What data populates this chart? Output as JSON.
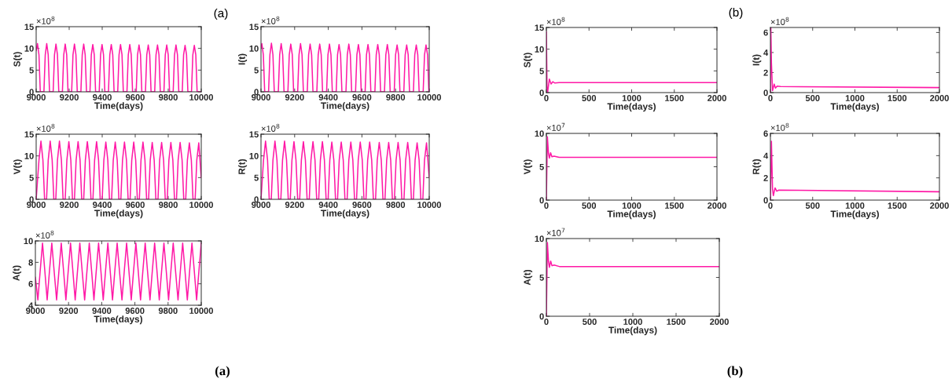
{
  "chart_data": [
    {
      "type": "line",
      "xlabel": "Time(days)",
      "ylabel": "S(t)",
      "annotations": [
        "×10$^{8}$",
        "(a)"
      ],
      "xlim": [
        9000,
        10000
      ],
      "xticks": [
        9000,
        9200,
        9400,
        9600,
        9800,
        10000
      ],
      "ylim": [
        0,
        15
      ],
      "yticks": [
        0,
        5,
        10,
        15
      ],
      "series": [
        {
          "color": "#ff19a6",
          "x": [
            9000,
            9008,
            9017,
            9025,
            9047,
            9055,
            9064,
            9073,
            9081,
            9103,
            9111,
            9120,
            9129,
            9137,
            9159,
            9167,
            9176,
            9185,
            9193,
            9215,
            9223,
            9232,
            9241,
            9249,
            9271,
            9279,
            9288,
            9297,
            9305,
            9326,
            9334,
            9343,
            9352,
            9360,
            9382,
            9390,
            9399,
            9408,
            9416,
            9438,
            9446,
            9455,
            9464,
            9472,
            9494,
            9502,
            9511,
            9520,
            9528,
            9550,
            9558,
            9567,
            9576,
            9584,
            9606,
            9614,
            9623,
            9632,
            9640,
            9662,
            9670,
            9679,
            9688,
            9696,
            9718,
            9726,
            9735,
            9744,
            9752,
            9774,
            9782,
            9791,
            9800,
            9808,
            9830,
            9838,
            9847,
            9856,
            9864,
            9885,
            9893,
            9902,
            9911,
            9919,
            9941,
            9949,
            9958,
            9967,
            9975,
            10000
          ],
          "values": [
            9.5,
            11.1,
            8.5,
            0,
            0,
            8.5,
            11.1,
            8.5,
            0,
            0,
            8.5,
            11.0,
            8.5,
            0,
            0,
            8.5,
            11.0,
            8.5,
            0,
            0,
            8.5,
            11.0,
            8.5,
            0,
            0,
            8.5,
            11.0,
            8.5,
            0,
            0,
            8.5,
            10.9,
            8.5,
            0,
            0,
            8.5,
            10.9,
            8.5,
            0,
            0,
            8.5,
            10.9,
            8.5,
            0,
            0,
            8.5,
            10.9,
            8.5,
            0,
            0,
            8.5,
            10.9,
            8.5,
            0,
            0,
            8.5,
            10.8,
            8.5,
            0,
            0,
            8.5,
            10.8,
            8.5,
            0,
            0,
            8.5,
            10.8,
            8.5,
            0,
            0,
            8.5,
            10.8,
            8.5,
            0,
            0,
            8.5,
            10.8,
            8.5,
            0,
            0,
            8.5,
            10.7,
            8.5,
            0,
            0,
            8.5,
            10.7,
            8.5,
            0,
            0
          ]
        }
      ]
    },
    {
      "type": "line",
      "xlabel": "Time(days)",
      "ylabel": "I(t)",
      "annotations": [
        "×10$^{8}$"
      ],
      "xlim": [
        9000,
        10000
      ],
      "xticks": [
        9000,
        9200,
        9400,
        9600,
        9800,
        10000
      ],
      "ylim": [
        0,
        15
      ],
      "yticks": [
        0,
        5,
        10,
        15
      ],
      "series": [
        {
          "color": "#ff19a6",
          "x": [
            9000,
            9005,
            9014,
            9022,
            9045,
            9053,
            9062,
            9071,
            9079,
            9103,
            9111,
            9120,
            9129,
            9137,
            9160,
            9168,
            9177,
            9186,
            9194,
            9218,
            9226,
            9235,
            9244,
            9252,
            9275,
            9283,
            9292,
            9301,
            9309,
            9332,
            9340,
            9349,
            9358,
            9366,
            9390,
            9398,
            9407,
            9416,
            9424,
            9447,
            9455,
            9464,
            9473,
            9481,
            9505,
            9513,
            9522,
            9531,
            9539,
            9562,
            9570,
            9579,
            9588,
            9596,
            9619,
            9627,
            9636,
            9645,
            9653,
            9677,
            9685,
            9694,
            9703,
            9711,
            9734,
            9742,
            9751,
            9760,
            9768,
            9792,
            9800,
            9809,
            9818,
            9826,
            9849,
            9857,
            9866,
            9875,
            9883,
            9906,
            9914,
            9923,
            9932,
            9940,
            9964,
            9972,
            9981,
            9990,
            9998,
            10000
          ],
          "values": [
            10.2,
            11.1,
            8.5,
            0,
            0,
            8.5,
            11.2,
            8.5,
            0,
            0,
            8.5,
            11.1,
            8.5,
            0,
            0,
            8.5,
            11.0,
            8.5,
            0,
            0,
            8.5,
            11.1,
            8.5,
            0,
            0,
            8.5,
            11.0,
            8.5,
            0,
            0,
            8.5,
            11.0,
            8.5,
            0,
            0,
            8.5,
            11.0,
            8.5,
            0,
            0,
            8.5,
            10.9,
            8.5,
            0,
            0,
            8.5,
            11.0,
            8.5,
            0,
            0,
            8.5,
            10.9,
            8.5,
            0,
            0,
            8.5,
            10.9,
            8.5,
            0,
            0,
            8.5,
            10.9,
            8.5,
            0,
            0,
            8.5,
            10.9,
            8.5,
            0,
            0,
            8.5,
            10.8,
            8.5,
            0,
            0,
            8.5,
            10.8,
            8.5,
            0,
            0,
            8.5,
            10.8,
            8.5,
            0,
            0,
            8.5,
            10.8,
            8.5,
            0,
            0
          ]
        }
      ]
    },
    {
      "type": "line",
      "xlabel": "Time(days)",
      "ylabel": "V(t)",
      "annotations": [
        "×10$^{8}$"
      ],
      "xlim": [
        9000,
        10000
      ],
      "xticks": [
        9000,
        9200,
        9400,
        9600,
        9800,
        10000
      ],
      "ylim": [
        0,
        15
      ],
      "yticks": [
        0,
        5,
        10,
        15
      ],
      "series": [
        {
          "color": "#ff19a6",
          "x": [
            9000,
            9017,
            9029,
            9041,
            9051,
            9063,
            9073,
            9085,
            9097,
            9107,
            9119,
            9129,
            9141,
            9153,
            9163,
            9176,
            9186,
            9198,
            9210,
            9220,
            9232,
            9242,
            9254,
            9266,
            9276,
            9288,
            9298,
            9310,
            9322,
            9332,
            9344,
            9354,
            9366,
            9378,
            9388,
            9400,
            9410,
            9422,
            9434,
            9444,
            9457,
            9467,
            9479,
            9491,
            9501,
            9513,
            9523,
            9535,
            9547,
            9557,
            9569,
            9579,
            9591,
            9603,
            9613,
            9625,
            9635,
            9647,
            9659,
            9669,
            9681,
            9691,
            9703,
            9715,
            9725,
            9738,
            9748,
            9760,
            9772,
            9782,
            9794,
            9804,
            9816,
            9828,
            9838,
            9850,
            9860,
            9872,
            9884,
            9894,
            9906,
            9916,
            9928,
            9940,
            9950,
            9963,
            9973,
            9985,
            10000
          ],
          "values": [
            0,
            9,
            13.4,
            9,
            0,
            0,
            9,
            13.4,
            9,
            0,
            0,
            9,
            13.4,
            9,
            0,
            0,
            9,
            13.3,
            9,
            0,
            0,
            9,
            13.3,
            9,
            0,
            0,
            9,
            13.3,
            9,
            0,
            0,
            9,
            13.3,
            9,
            0,
            0,
            9,
            13.2,
            9,
            0,
            0,
            9,
            13.2,
            9,
            0,
            0,
            9,
            13.2,
            9,
            0,
            0,
            9,
            13.2,
            9,
            0,
            0,
            9,
            13.2,
            9,
            0,
            0,
            9,
            13.1,
            9,
            0,
            0,
            9,
            13.1,
            9,
            0,
            0,
            9,
            13.1,
            9,
            0,
            0,
            9,
            13.1,
            9,
            0,
            0,
            9,
            13.0,
            9,
            0,
            0,
            9,
            13.0,
            5
          ]
        }
      ]
    },
    {
      "type": "line",
      "xlabel": "Time(days)",
      "ylabel": "R(t)",
      "annotations": [
        "×10$^{8}$"
      ],
      "xlim": [
        9000,
        10000
      ],
      "xticks": [
        9000,
        9200,
        9400,
        9600,
        9800,
        10000
      ],
      "ylim": [
        0,
        15
      ],
      "yticks": [
        0,
        5,
        10,
        15
      ],
      "series": [
        {
          "color": "#ff19a6",
          "x": [
            9000,
            9015,
            9027,
            9039,
            9049,
            9061,
            9071,
            9083,
            9095,
            9105,
            9118,
            9128,
            9140,
            9152,
            9162,
            9174,
            9184,
            9196,
            9208,
            9218,
            9230,
            9240,
            9252,
            9264,
            9274,
            9287,
            9297,
            9309,
            9321,
            9331,
            9343,
            9353,
            9365,
            9377,
            9387,
            9399,
            9409,
            9421,
            9433,
            9443,
            9455,
            9465,
            9477,
            9489,
            9499,
            9512,
            9522,
            9534,
            9546,
            9556,
            9568,
            9578,
            9590,
            9602,
            9612,
            9624,
            9634,
            9646,
            9658,
            9668,
            9681,
            9691,
            9703,
            9715,
            9725,
            9737,
            9747,
            9759,
            9771,
            9781,
            9793,
            9803,
            9815,
            9827,
            9837,
            9850,
            9860,
            9872,
            9884,
            9894,
            9906,
            9916,
            9928,
            9940,
            9950,
            9962,
            9972,
            9984,
            10000
          ],
          "values": [
            0,
            9,
            13.4,
            9,
            0,
            0,
            9,
            13.4,
            9,
            0,
            0,
            9,
            13.4,
            9,
            0,
            0,
            9,
            13.3,
            9,
            0,
            0,
            9,
            13.3,
            9,
            0,
            0,
            9,
            13.3,
            9,
            0,
            0,
            9,
            13.3,
            9,
            0,
            0,
            9,
            13.2,
            9,
            0,
            0,
            9,
            13.2,
            9,
            0,
            0,
            9,
            13.2,
            9,
            0,
            0,
            9,
            13.2,
            9,
            0,
            0,
            9,
            13.2,
            9,
            0,
            0,
            9,
            13.1,
            9,
            0,
            0,
            9,
            13.1,
            9,
            0,
            0,
            9,
            13.1,
            9,
            0,
            0,
            9,
            13.1,
            9,
            0,
            0,
            9,
            13.0,
            9,
            0,
            0,
            9,
            13.0,
            5
          ]
        }
      ]
    },
    {
      "type": "line",
      "xlabel": "Time(days)",
      "ylabel": "A(t)",
      "annotations": [
        "×10$^{8}$",
        "(a)"
      ],
      "xlim": [
        9000,
        10000
      ],
      "xticks": [
        9000,
        9200,
        9400,
        9600,
        9800,
        10000
      ],
      "ylim": [
        4,
        10
      ],
      "yticks": [
        4,
        6,
        8,
        10
      ],
      "series": [
        {
          "color": "#ff19a6",
          "x": [
            9000,
            9015,
            9029,
            9043,
            9057,
            9071,
            9085,
            9099,
            9113,
            9128,
            9142,
            9156,
            9170,
            9184,
            9198,
            9212,
            9226,
            9240,
            9254,
            9268,
            9282,
            9297,
            9311,
            9325,
            9339,
            9353,
            9367,
            9381,
            9395,
            9409,
            9423,
            9437,
            9451,
            9465,
            9479,
            9493,
            9507,
            9522,
            9536,
            9550,
            9564,
            9578,
            9592,
            9606,
            9620,
            9634,
            9648,
            9662,
            9676,
            9691,
            9705,
            9719,
            9733,
            9747,
            9761,
            9775,
            9789,
            9803,
            9817,
            9831,
            9845,
            9860,
            9874,
            9888,
            9902,
            9916,
            9930,
            9944,
            9958,
            9972,
            9986,
            10000
          ],
          "values": [
            6.6,
            4.5,
            7.2,
            9.8,
            7.2,
            4.5,
            7.2,
            9.8,
            7.2,
            4.5,
            7.2,
            9.8,
            7.2,
            4.5,
            7.2,
            9.8,
            7.2,
            4.5,
            7.2,
            9.8,
            7.2,
            4.5,
            7.2,
            9.8,
            7.2,
            4.5,
            7.2,
            9.8,
            7.2,
            4.5,
            7.2,
            9.8,
            7.2,
            4.5,
            7.2,
            9.8,
            7.2,
            4.5,
            7.2,
            9.8,
            7.2,
            4.5,
            7.2,
            9.8,
            7.2,
            4.5,
            7.2,
            9.8,
            7.2,
            4.5,
            7.2,
            9.8,
            7.2,
            4.5,
            7.2,
            9.8,
            7.2,
            4.5,
            7.2,
            9.8,
            7.2,
            4.5,
            7.2,
            9.8,
            7.2,
            4.5,
            7.2,
            9.8,
            7.2,
            4.5,
            7.2,
            9.8
          ]
        }
      ]
    },
    {
      "type": "line",
      "xlabel": "Time(days)",
      "ylabel": "S(t)",
      "annotations": [
        "×10$^{8}$",
        "(b)"
      ],
      "xlim": [
        0,
        2000
      ],
      "xticks": [
        0,
        500,
        1000,
        1500,
        2000
      ],
      "ylim": [
        0,
        15
      ],
      "yticks": [
        0,
        5,
        10,
        15
      ],
      "series": [
        {
          "color": "#ff19a6",
          "x": [
            0,
            8,
            15,
            35,
            55,
            75,
            100,
            150,
            2000
          ],
          "values": [
            14,
            1,
            0.1,
            3.1,
            2.0,
            2.5,
            2.2,
            2.3,
            2.3
          ]
        }
      ]
    },
    {
      "type": "line",
      "xlabel": "Time(days)",
      "ylabel": "I(t)",
      "annotations": [
        "×10$^{8}$"
      ],
      "xlim": [
        0,
        2000
      ],
      "xticks": [
        0,
        500,
        1000,
        1500,
        2000
      ],
      "ylim": [
        0,
        6.5
      ],
      "yticks": [
        0,
        2,
        4,
        6
      ],
      "series": [
        {
          "color": "#ff19a6",
          "x": [
            0,
            5,
            12,
            25,
            45,
            60,
            80,
            120,
            2000
          ],
          "values": [
            0,
            6.5,
            3,
            0.2,
            0.85,
            0.45,
            0.65,
            0.6,
            0.5
          ]
        }
      ]
    },
    {
      "type": "line",
      "xlabel": "Time(days)",
      "ylabel": "V(t)",
      "annotations": [
        "×10$^{7}$"
      ],
      "xlim": [
        0,
        2000
      ],
      "xticks": [
        0,
        500,
        1000,
        1500,
        2000
      ],
      "ylim": [
        0,
        10
      ],
      "yticks": [
        0,
        5,
        10
      ],
      "series": [
        {
          "color": "#ff19a6",
          "x": [
            0,
            12,
            25,
            35,
            50,
            65,
            90,
            150,
            2000
          ],
          "values": [
            0,
            9.5,
            7,
            6.3,
            7.1,
            6.5,
            6.6,
            6.4,
            6.4
          ]
        }
      ]
    },
    {
      "type": "line",
      "xlabel": "Time(days)",
      "ylabel": "R(t)",
      "annotations": [
        "×10$^{8}$"
      ],
      "xlim": [
        0,
        2000
      ],
      "xticks": [
        0,
        500,
        1000,
        1500,
        2000
      ],
      "ylim": [
        0,
        6
      ],
      "yticks": [
        0,
        2,
        4,
        6
      ],
      "series": [
        {
          "color": "#ff19a6",
          "x": [
            0,
            12,
            25,
            35,
            55,
            75,
            100,
            2000
          ],
          "values": [
            0,
            5.3,
            1,
            0.4,
            1.1,
            0.8,
            0.9,
            0.75
          ]
        }
      ]
    },
    {
      "type": "line",
      "xlabel": "Time(days)",
      "ylabel": "A(t)",
      "annotations": [
        "×10$^{7}$",
        "(b)"
      ],
      "xlim": [
        0,
        2000
      ],
      "xticks": [
        0,
        500,
        1000,
        1500,
        2000
      ],
      "ylim": [
        0,
        10
      ],
      "yticks": [
        0,
        5,
        10
      ],
      "series": [
        {
          "color": "#ff19a6",
          "x": [
            0,
            12,
            25,
            35,
            50,
            65,
            90,
            150,
            2000
          ],
          "values": [
            0,
            9.5,
            7,
            6.3,
            7.1,
            6.5,
            6.6,
            6.4,
            6.4
          ]
        }
      ]
    }
  ]
}
